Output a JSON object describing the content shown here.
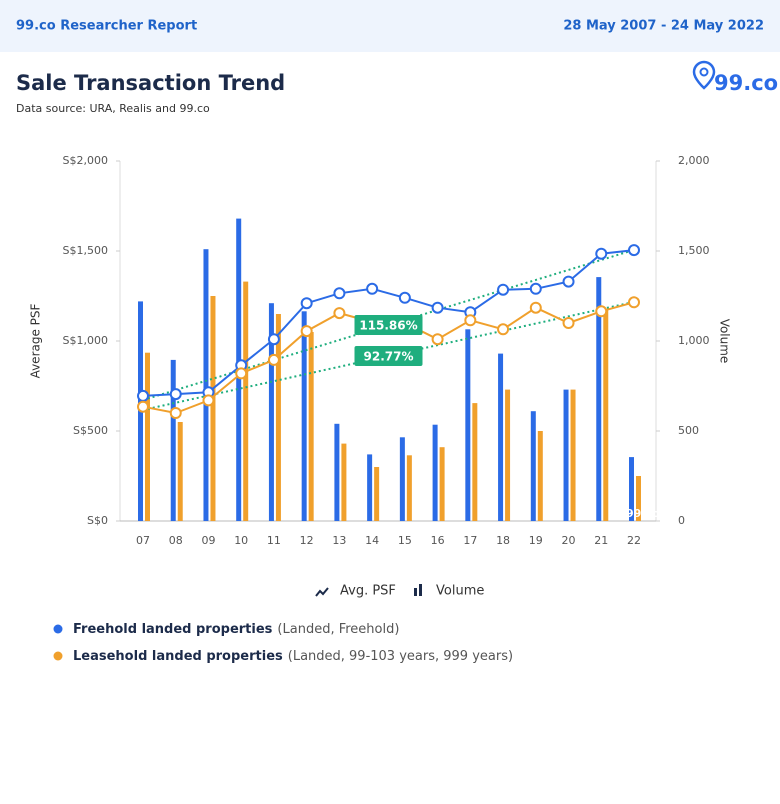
{
  "header": {
    "left": "99.co Researcher Report",
    "right": "28 May 2007 - 24 May 2022"
  },
  "logo": "99.co",
  "chart_data": {
    "type": "combo",
    "title": "Sale Transaction Trend",
    "subtitle": "Data source: URA, Realis and 99.co",
    "y_label": "Average PSF",
    "y2_label": "Volume",
    "categories": [
      "07",
      "08",
      "09",
      "10",
      "11",
      "12",
      "13",
      "14",
      "15",
      "16",
      "17",
      "18",
      "19",
      "20",
      "21",
      "22"
    ],
    "ylim": [
      0,
      2000
    ],
    "yticks": [
      {
        "value": 0,
        "label": "S$0"
      },
      {
        "value": 500,
        "label": "S$500"
      },
      {
        "value": 1000,
        "label": "S$1,000"
      },
      {
        "value": 1500,
        "label": "S$1,500"
      },
      {
        "value": 2000,
        "label": "S$2,000"
      }
    ],
    "y2lim": [
      0,
      2000
    ],
    "y2ticks": [
      0,
      500,
      {
        "value": 1000,
        "label": "1,000"
      },
      {
        "value": 1500,
        "label": "1,500"
      },
      {
        "value": 2000,
        "label": "2,000"
      }
    ],
    "grid": false,
    "type_legend": [
      "Avg. PSF",
      "Volume"
    ],
    "groups": [
      {
        "name": "Freehold landed properties",
        "detail": "(Landed, Freehold)",
        "color": "#2b6be6"
      },
      {
        "name": "Leasehold landed properties",
        "detail": "(Landed, 99-103 years, 999 years)",
        "color": "#f0a02c"
      }
    ],
    "series": [
      {
        "group": 0,
        "type": "bar",
        "axis": "y2",
        "values": [
          1220,
          895,
          1510,
          1680,
          1210,
          1165,
          540,
          370,
          465,
          535,
          1065,
          930,
          610,
          730,
          1355,
          355
        ]
      },
      {
        "group": 1,
        "type": "bar",
        "axis": "y2",
        "values": [
          935,
          550,
          1250,
          1330,
          1150,
          1050,
          430,
          300,
          365,
          410,
          655,
          730,
          500,
          730,
          1170,
          250
        ]
      },
      {
        "group": 0,
        "type": "line",
        "values": [
          695,
          705,
          715,
          865,
          1010,
          1210,
          1265,
          1290,
          1240,
          1185,
          1160,
          1285,
          1290,
          1330,
          1485,
          1505
        ]
      },
      {
        "group": 1,
        "type": "line",
        "values": [
          635,
          600,
          670,
          820,
          895,
          1055,
          1155,
          1105,
          1100,
          1010,
          1115,
          1065,
          1185,
          1100,
          1165,
          1215
        ]
      }
    ],
    "trendlines": [
      {
        "from": "07",
        "to": "22",
        "values": [
          672,
          1506
        ],
        "color": "#1fae7e",
        "label": "115.86%"
      },
      {
        "from": "07",
        "to": "22",
        "values": [
          617,
          1217
        ],
        "color": "#1fae7e",
        "label": "92.77%"
      }
    ]
  }
}
